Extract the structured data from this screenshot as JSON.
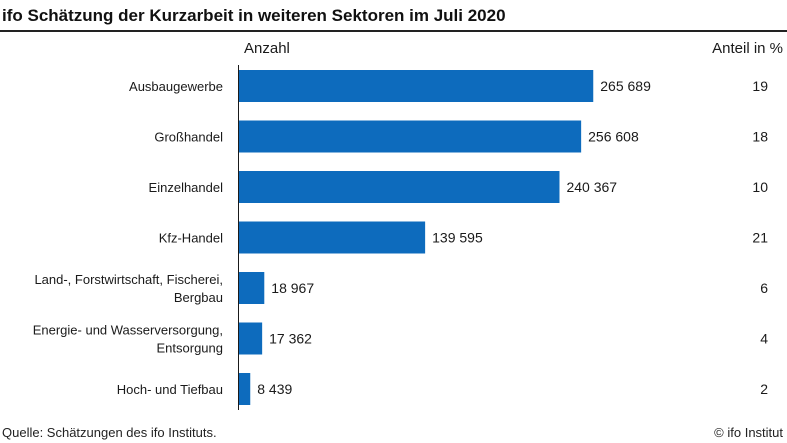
{
  "title": "ifo Schätzung der Kurzarbeit in weiteren Sektoren im Juli 2020",
  "column_left_header": "Anzahl",
  "column_right_header": "Anteil in %",
  "footer": {
    "source": "Quelle: Schätzungen des ifo Instituts.",
    "copyright": "© ifo Institut"
  },
  "colors": {
    "bar": "#0d6bbd",
    "axis": "#1a1a1a"
  },
  "chart_data": {
    "type": "bar",
    "orientation": "horizontal",
    "categories": [
      "Ausbaugewerbe",
      "Großhandel",
      "Einzelhandel",
      "Kfz-Handel",
      "Land-, Forstwirtschaft, Fischerei, Bergbau",
      "Energie- und Wasserversorgung, Entsorgung",
      "Hoch- und Tiefbau"
    ],
    "category_lines": [
      [
        "Ausbaugewerbe"
      ],
      [
        "Großhandel"
      ],
      [
        "Einzelhandel"
      ],
      [
        "Kfz-Handel"
      ],
      [
        "Land-, Forstwirtschaft, Fischerei,",
        "Bergbau"
      ],
      [
        "Energie- und Wasserversorgung,",
        "Entsorgung"
      ],
      [
        "Hoch- und Tiefbau"
      ]
    ],
    "values": [
      265689,
      256608,
      240367,
      139595,
      18967,
      17362,
      8439
    ],
    "value_labels": [
      "265 689",
      "256 608",
      "240 367",
      "139 595",
      "18 967",
      "17 362",
      "8 439"
    ],
    "shares": [
      "19",
      "18",
      "10",
      "21",
      "6",
      "4",
      "2"
    ],
    "xlim": [
      0,
      333000
    ],
    "grid": false
  }
}
